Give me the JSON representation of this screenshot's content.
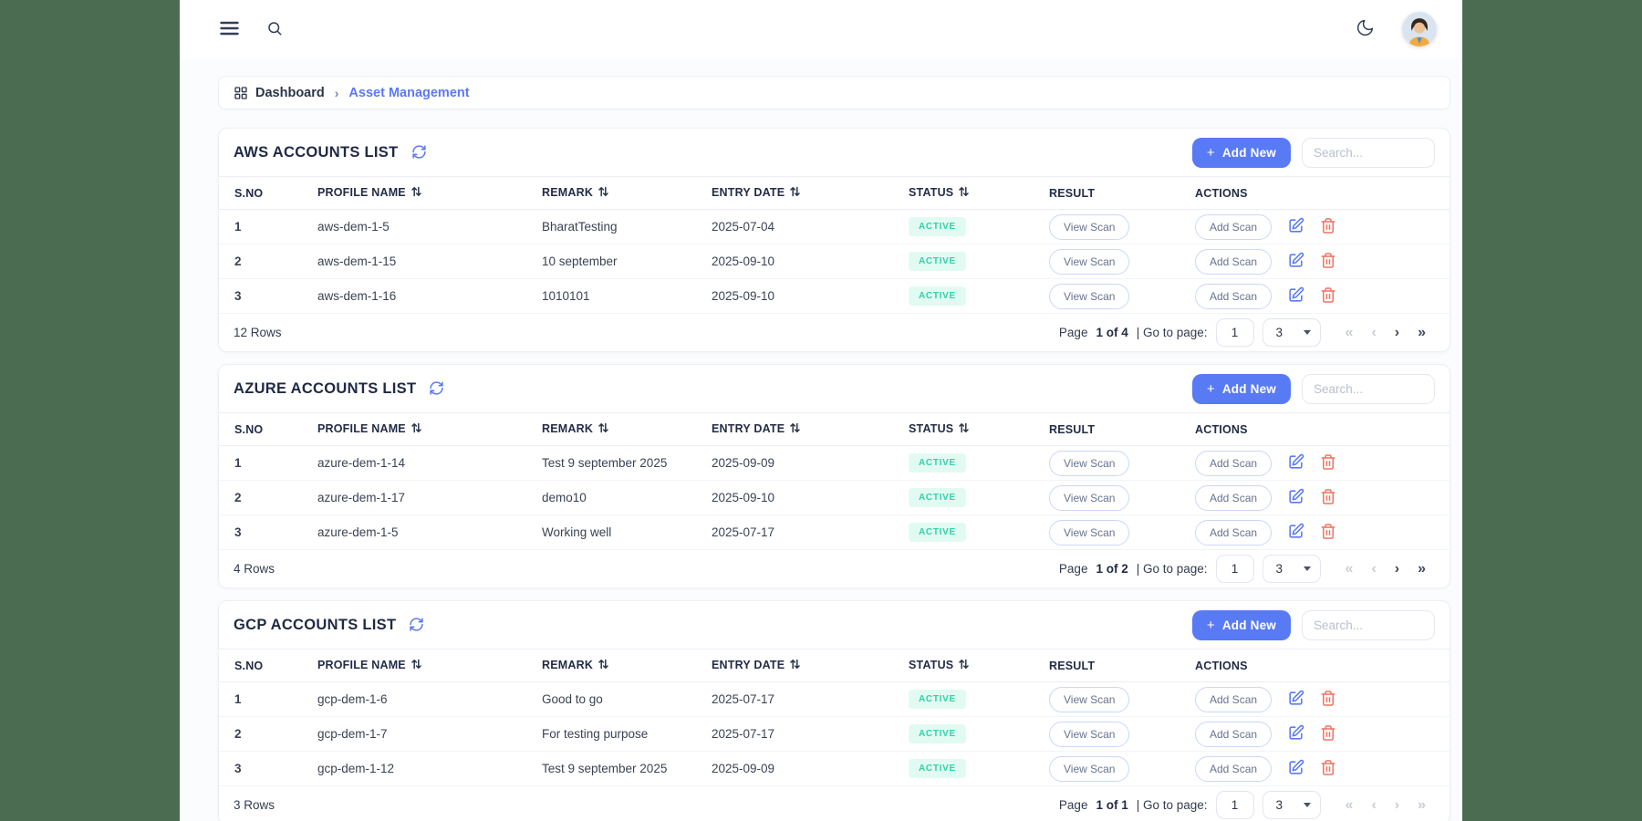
{
  "colors": {
    "accent_blue": "#597af5",
    "link_blue": "#5b79f3",
    "badge_bg": "#e2fbf2",
    "badge_text": "#2ed3a6",
    "danger_red": "#ef7360",
    "title_navy": "#1f2945",
    "desktop_green": "#4b6c50"
  },
  "icons": {
    "menu": "hamburger-icon",
    "search": "search-icon",
    "theme": "moon-icon",
    "breadcrumb_root": "dashboard-grid-icon",
    "breadcrumb_separator": "chevron-right-icon",
    "refresh": "refresh-icon",
    "sort": "sort-arrows-icon",
    "edit": "edit-pencil-icon",
    "delete": "trash-icon",
    "page_size": "caret-down-icon"
  },
  "breadcrumb": {
    "root": "Dashboard",
    "separator": "›",
    "current": "Asset Management"
  },
  "tables": [
    {
      "id": "aws",
      "title": "AWS ACCOUNTS LIST",
      "add_new_plus": "+",
      "add_new_label": "Add New",
      "search_placeholder": "Search...",
      "columns": [
        {
          "label": "S.NO",
          "sortable": false
        },
        {
          "label": "PROFILE NAME",
          "sortable": true
        },
        {
          "label": "REMARK",
          "sortable": true
        },
        {
          "label": "ENTRY DATE",
          "sortable": true
        },
        {
          "label": "STATUS",
          "sortable": true
        },
        {
          "label": "RESULT",
          "sortable": false
        },
        {
          "label": "ACTIONS",
          "sortable": false
        }
      ],
      "rows": [
        {
          "sno": "1",
          "profile_name": "aws-dem-1-5",
          "remark": "BharatTesting",
          "entry_date": "2025-07-04",
          "status": "ACTIVE",
          "view_scan_label": "View Scan",
          "add_scan_label": "Add Scan"
        },
        {
          "sno": "2",
          "profile_name": "aws-dem-1-15",
          "remark": "10 september",
          "entry_date": "2025-09-10",
          "status": "ACTIVE",
          "view_scan_label": "View Scan",
          "add_scan_label": "Add Scan"
        },
        {
          "sno": "3",
          "profile_name": "aws-dem-1-16",
          "remark": "1010101",
          "entry_date": "2025-09-10",
          "status": "ACTIVE",
          "view_scan_label": "View Scan",
          "add_scan_label": "Add Scan"
        }
      ],
      "footer": {
        "rows_count": "12 Rows",
        "page_label": "Page",
        "page_value": "1 of 4",
        "goto_label": "| Go to page:",
        "goto_input_value": "1",
        "page_size_value": "3",
        "nav": [
          {
            "name": "first-page",
            "glyph": "«",
            "enabled": false
          },
          {
            "name": "prev-page",
            "glyph": "‹",
            "enabled": false
          },
          {
            "name": "next-page",
            "glyph": "›",
            "enabled": true
          },
          {
            "name": "last-page",
            "glyph": "»",
            "enabled": true
          }
        ]
      }
    },
    {
      "id": "azure",
      "title": "AZURE ACCOUNTS LIST",
      "add_new_plus": "+",
      "add_new_label": "Add New",
      "search_placeholder": "Search...",
      "columns": [
        {
          "label": "S.NO",
          "sortable": false
        },
        {
          "label": "PROFILE NAME",
          "sortable": true
        },
        {
          "label": "REMARK",
          "sortable": true
        },
        {
          "label": "ENTRY DATE",
          "sortable": true
        },
        {
          "label": "STATUS",
          "sortable": true
        },
        {
          "label": "RESULT",
          "sortable": false
        },
        {
          "label": "ACTIONS",
          "sortable": false
        }
      ],
      "rows": [
        {
          "sno": "1",
          "profile_name": "azure-dem-1-14",
          "remark": "Test 9 september 2025",
          "entry_date": "2025-09-09",
          "status": "ACTIVE",
          "view_scan_label": "View Scan",
          "add_scan_label": "Add Scan"
        },
        {
          "sno": "2",
          "profile_name": "azure-dem-1-17",
          "remark": "demo10",
          "entry_date": "2025-09-10",
          "status": "ACTIVE",
          "view_scan_label": "View Scan",
          "add_scan_label": "Add Scan"
        },
        {
          "sno": "3",
          "profile_name": "azure-dem-1-5",
          "remark": "Working well",
          "entry_date": "2025-07-17",
          "status": "ACTIVE",
          "view_scan_label": "View Scan",
          "add_scan_label": "Add Scan"
        }
      ],
      "footer": {
        "rows_count": "4 Rows",
        "page_label": "Page",
        "page_value": "1 of 2",
        "goto_label": "| Go to page:",
        "goto_input_value": "1",
        "page_size_value": "3",
        "nav": [
          {
            "name": "first-page",
            "glyph": "«",
            "enabled": false
          },
          {
            "name": "prev-page",
            "glyph": "‹",
            "enabled": false
          },
          {
            "name": "next-page",
            "glyph": "›",
            "enabled": true
          },
          {
            "name": "last-page",
            "glyph": "»",
            "enabled": true
          }
        ]
      }
    },
    {
      "id": "gcp",
      "title": "GCP ACCOUNTS LIST",
      "add_new_plus": "+",
      "add_new_label": "Add New",
      "search_placeholder": "Search...",
      "columns": [
        {
          "label": "S.NO",
          "sortable": false
        },
        {
          "label": "PROFILE NAME",
          "sortable": true
        },
        {
          "label": "REMARK",
          "sortable": true
        },
        {
          "label": "ENTRY DATE",
          "sortable": true
        },
        {
          "label": "STATUS",
          "sortable": true
        },
        {
          "label": "RESULT",
          "sortable": false
        },
        {
          "label": "ACTIONS",
          "sortable": false
        }
      ],
      "rows": [
        {
          "sno": "1",
          "profile_name": "gcp-dem-1-6",
          "remark": "Good to go",
          "entry_date": "2025-07-17",
          "status": "ACTIVE",
          "view_scan_label": "View Scan",
          "add_scan_label": "Add Scan"
        },
        {
          "sno": "2",
          "profile_name": "gcp-dem-1-7",
          "remark": "For testing purpose",
          "entry_date": "2025-07-17",
          "status": "ACTIVE",
          "view_scan_label": "View Scan",
          "add_scan_label": "Add Scan"
        },
        {
          "sno": "3",
          "profile_name": "gcp-dem-1-12",
          "remark": "Test 9 september 2025",
          "entry_date": "2025-09-09",
          "status": "ACTIVE",
          "view_scan_label": "View Scan",
          "add_scan_label": "Add Scan"
        }
      ],
      "footer": {
        "rows_count": "3 Rows",
        "page_label": "Page",
        "page_value": "1 of 1",
        "goto_label": "| Go to page:",
        "goto_input_value": "1",
        "page_size_value": "3",
        "nav": [
          {
            "name": "first-page",
            "glyph": "«",
            "enabled": false
          },
          {
            "name": "prev-page",
            "glyph": "‹",
            "enabled": false
          },
          {
            "name": "next-page",
            "glyph": "›",
            "enabled": false
          },
          {
            "name": "last-page",
            "glyph": "»",
            "enabled": false
          }
        ]
      }
    }
  ]
}
